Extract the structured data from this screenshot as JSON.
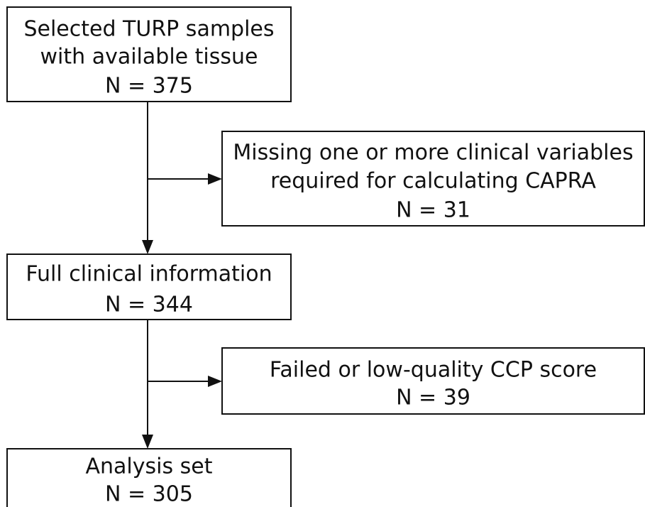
{
  "nodes": [
    {
      "lines": [
        "Selected TURP samples",
        "with available tissue",
        "N = 375"
      ]
    },
    {
      "lines": [
        "Missing one or more clinical variables",
        "required for calculating CAPRA",
        "N = 31"
      ]
    },
    {
      "lines": [
        "Full clinical information",
        "N = 344"
      ]
    },
    {
      "lines": [
        "Failed or low-quality CCP score",
        "N = 39"
      ]
    },
    {
      "lines": [
        "Analysis set",
        "N = 305"
      ]
    }
  ]
}
